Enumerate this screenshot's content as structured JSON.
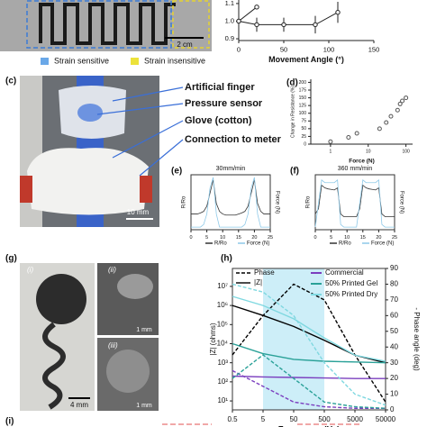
{
  "panels": {
    "c": "(c)",
    "d": "(d)",
    "e": "(e)",
    "f": "(f)",
    "g": "(g)",
    "h": "(h)",
    "i": "(i)"
  },
  "photo_a": {
    "scale": "2 cm",
    "legend": [
      "Strain sensitive",
      "Strain insensitive"
    ]
  },
  "photo_c": {
    "labels": [
      "Artificial finger",
      "Pressure sensor",
      "Glove (cotton)",
      "Connection to meter"
    ],
    "scale": "10 mm"
  },
  "photo_g": {
    "labels": [
      "(i)",
      "(ii)",
      "(iii)"
    ],
    "scales": [
      "4 mm",
      "1 mm",
      "1 mm"
    ]
  },
  "chart_data": [
    {
      "type": "line",
      "xlabel": "Movement Angle  (°)",
      "xlim": [
        0,
        150
      ],
      "xticks": [
        0,
        50,
        100,
        150
      ],
      "ylim": [
        0.89,
        1.12
      ],
      "yticks": [
        0.9,
        {
          "value": 1,
          "label": "1.0"
        },
        1.1
      ],
      "series": [
        {
          "color": "#222222",
          "x": [
            0,
            20
          ],
          "values": [
            1.0,
            1.08
          ]
        },
        {
          "color": "#222222",
          "x": [
            0,
            20,
            50,
            85,
            110
          ],
          "values": [
            1.0,
            0.98,
            0.98,
            0.98,
            1.05
          ],
          "errors": [
            0.02,
            0.04,
            0.04,
            0.05,
            0.06
          ]
        }
      ]
    },
    {
      "type": "scatter",
      "xlabel": "Force (N)",
      "ylabel": "Change in Resistance (%)",
      "xlog": true,
      "xlim": [
        0.3,
        150
      ],
      "xticks": [
        1,
        10,
        100
      ],
      "ylim": [
        0,
        210
      ],
      "yticks": [
        0,
        25,
        50,
        75,
        100,
        125,
        150,
        175,
        200
      ],
      "series": [
        {
          "color": "#555555",
          "x": [
            1,
            3,
            5,
            20,
            30,
            40,
            60,
            70,
            80,
            100
          ],
          "values": [
            8,
            22,
            35,
            50,
            70,
            90,
            110,
            130,
            140,
            150
          ]
        }
      ]
    },
    {
      "type": "line",
      "title": "30mm/min",
      "ylabel": "R/Ro",
      "y2label": "Force (N)",
      "xlim": [
        0,
        25
      ],
      "xticks": [
        0,
        5,
        10,
        15,
        20,
        25
      ],
      "ylim": [
        0,
        1.05
      ],
      "x": [
        0,
        1,
        2,
        3,
        4,
        5,
        6,
        7,
        8,
        9,
        10,
        11,
        12,
        13,
        14,
        15,
        16,
        17,
        18,
        19,
        20,
        21,
        22,
        23,
        24,
        25
      ],
      "series": [
        {
          "name": "R/Ro",
          "color": "#333333",
          "values": [
            0.3,
            0.3,
            0.3,
            0.32,
            0.35,
            0.45,
            0.7,
            0.95,
            0.5,
            0.35,
            0.3,
            0.28,
            0.28,
            0.28,
            0.28,
            0.3,
            0.32,
            0.35,
            0.45,
            0.7,
            0.95,
            0.5,
            0.35,
            0.3,
            0.3,
            0.3
          ]
        },
        {
          "name": "Force (N)",
          "color": "#8ec9e8",
          "values": [
            0.05,
            0.05,
            0.05,
            0.05,
            0.1,
            0.3,
            0.8,
            1.0,
            0.3,
            0.05,
            0.05,
            0.05,
            0.05,
            0.05,
            0.05,
            0.05,
            0.05,
            0.1,
            0.3,
            0.8,
            1.0,
            0.3,
            0.05,
            0.05,
            0.05,
            0.05
          ]
        }
      ]
    },
    {
      "type": "line",
      "title": "360 mm/min",
      "ylabel": "R/Ro",
      "y2label": "Force (N)",
      "xlim": [
        0,
        25
      ],
      "xticks": [
        0,
        5,
        10,
        15,
        20,
        25
      ],
      "ylim": [
        0,
        1.05
      ],
      "x": [
        0,
        1,
        2,
        3,
        4,
        5,
        6,
        7,
        8,
        9,
        10,
        11,
        12,
        13,
        14,
        15,
        16,
        17,
        18,
        19,
        20,
        21,
        22,
        23,
        24,
        25
      ],
      "series": [
        {
          "name": "R/Ro",
          "color": "#333333",
          "values": [
            0.3,
            0.4,
            0.85,
            0.8,
            0.78,
            0.77,
            0.76,
            0.8,
            0.3,
            0.25,
            0.25,
            0.25,
            0.25,
            0.25,
            0.4,
            0.85,
            0.8,
            0.78,
            0.77,
            0.76,
            0.8,
            0.3,
            0.25,
            0.25,
            0.25,
            0.25
          ]
        },
        {
          "name": "Force (N)",
          "color": "#8ec9e8",
          "values": [
            0.05,
            0.5,
            0.95,
            0.9,
            0.9,
            0.9,
            0.9,
            0.95,
            0.1,
            0.05,
            0.05,
            0.05,
            0.05,
            0.05,
            0.5,
            0.95,
            0.9,
            0.9,
            0.9,
            0.9,
            0.95,
            0.1,
            0.05,
            0.05,
            0.05,
            0.05
          ]
        }
      ]
    },
    {
      "type": "impedance",
      "xlabel": "Frequency (Hz)",
      "ylabel": "|Z| (ohms)",
      "y2label": "- Phase angle (deg)",
      "xlog": true,
      "ylog": true,
      "xlim": [
        0.5,
        50000
      ],
      "xticks": [
        0.5,
        5,
        50,
        500,
        5000,
        50000
      ],
      "ylim": [
        3.4,
        87000000
      ],
      "yticks": [
        {
          "value": 10,
          "label": "10¹"
        },
        {
          "value": 100,
          "label": "10²"
        },
        {
          "value": 1000,
          "label": "10³"
        },
        {
          "value": 10000,
          "label": "10⁴"
        },
        {
          "value": 100000,
          "label": "10⁵"
        },
        {
          "value": 1000000,
          "label": "10⁶"
        },
        {
          "value": 10000000,
          "label": "10⁷"
        }
      ],
      "y2lim": [
        0,
        90
      ],
      "y2ticks": [
        0,
        10,
        20,
        30,
        40,
        50,
        60,
        70,
        80,
        90
      ],
      "highlight": [
        5,
        500
      ],
      "style_legend": [
        {
          "name": "Phase",
          "dash": true
        },
        {
          "name": "|Z|",
          "dash": false
        }
      ],
      "x": [
        0.5,
        5,
        50,
        500,
        5000,
        50000
      ],
      "series": [
        {
          "color": "#000000",
          "z": [
            1000000,
            300000,
            80000,
            15000,
            2500,
            1000
          ],
          "phase": [
            35,
            60,
            80,
            70,
            35,
            5
          ]
        },
        {
          "name": "Commercial",
          "color": "#7b3fbf",
          "z": [
            200,
            180,
            170,
            160,
            150,
            150
          ],
          "phase": [
            25,
            15,
            5,
            2,
            1,
            1
          ]
        },
        {
          "name": "50% Printed Gel",
          "color": "#2aa198",
          "z": [
            10000,
            3000,
            1500,
            1200,
            1100,
            1000
          ],
          "phase": [
            20,
            35,
            20,
            5,
            2,
            1
          ]
        },
        {
          "name": "50% Printed Dry",
          "color": "#7fd8e0",
          "z": [
            3000000,
            1000000,
            200000,
            20000,
            2500,
            1200
          ],
          "phase": [
            80,
            75,
            60,
            30,
            10,
            3
          ]
        }
      ]
    }
  ]
}
